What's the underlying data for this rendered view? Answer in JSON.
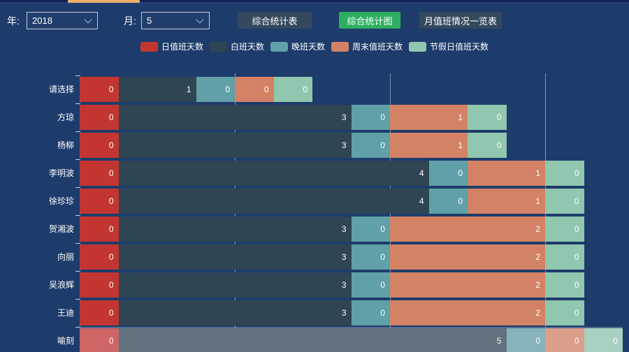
{
  "topbar": {
    "year_label": "年:",
    "year_value": "2018",
    "month_label": "月:",
    "month_value": "5",
    "buttons": [
      {
        "label": "综合统计表",
        "active": false
      },
      {
        "label": "综合统计图",
        "active": true
      },
      {
        "label": "月值班情况一览表",
        "active": false
      }
    ]
  },
  "colors": {
    "background": "#1d3c6b",
    "button_dark": "#34495e",
    "button_active_green": "#2eae60",
    "top_scrollbar_thumb": "#eeb06a",
    "gridline": "rgba(255,255,255,0.45)",
    "text": "#ffffff"
  },
  "chart_data": {
    "type": "bar",
    "orientation": "horizontal",
    "stacked": true,
    "title": "",
    "xlabel": "",
    "ylabel": "",
    "legend_position": "top",
    "grid": true,
    "categories": [
      "请选择",
      "方琼",
      "杨柳",
      "李明波",
      "徐珍珍",
      "贺湘波",
      "向丽",
      "吴浪辉",
      "王迪",
      "喻刻"
    ],
    "series": [
      {
        "name": "日值班天数",
        "color": "#c23531",
        "values": [
          0,
          0,
          0,
          0,
          0,
          0,
          0,
          0,
          0,
          0
        ]
      },
      {
        "name": "白班天数",
        "color": "#2f4554",
        "values": [
          1,
          3,
          3,
          4,
          4,
          3,
          3,
          3,
          3,
          5
        ]
      },
      {
        "name": "晚班天数",
        "color": "#61a0a8",
        "values": [
          0,
          0,
          0,
          0,
          0,
          0,
          0,
          0,
          0,
          0
        ]
      },
      {
        "name": "周末值班天数",
        "color": "#d48265",
        "values": [
          0,
          1,
          1,
          1,
          1,
          2,
          2,
          2,
          2,
          0
        ]
      },
      {
        "name": "节假日值班天数",
        "color": "#91c7ae",
        "values": [
          0,
          0,
          0,
          0,
          0,
          0,
          0,
          0,
          0,
          0
        ]
      }
    ],
    "x_axis": {
      "min": 0,
      "max": 7,
      "gridline_values": [
        2,
        4,
        6
      ],
      "tick_labels_visible": false
    },
    "zero_value_display_width": 0.5,
    "value_labels": "inside-right",
    "highlighted_category": "喻刻"
  }
}
